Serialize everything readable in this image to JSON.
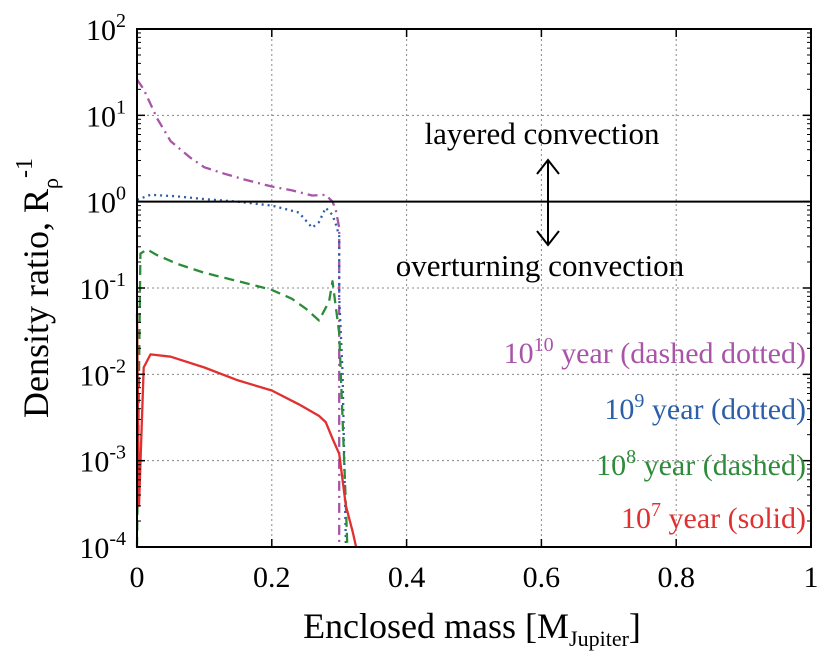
{
  "chart_data": {
    "type": "line",
    "xlabel": "Enclosed mass [M",
    "xlabel_sub": "Jupiter",
    "xlabel_close": "]",
    "ylabel": "Density ratio, R",
    "ylabel_sub": "ρ",
    "ylabel_sup": "-1",
    "xlim": [
      0,
      1
    ],
    "ylim": [
      0.0001,
      100
    ],
    "y_scale": "log",
    "grid": true,
    "x_ticks": [
      "0",
      "0.2",
      "0.4",
      "0.6",
      "0.8",
      "1"
    ],
    "x_tick_values": [
      0,
      0.2,
      0.4,
      0.6,
      0.8,
      1
    ],
    "y_ticks": [
      {
        "value": 100,
        "base": "10",
        "exp": "2"
      },
      {
        "value": 10,
        "base": "10",
        "exp": "1"
      },
      {
        "value": 1,
        "base": "10",
        "exp": "0"
      },
      {
        "value": 0.1,
        "base": "10",
        "exp": "-1"
      },
      {
        "value": 0.01,
        "base": "10",
        "exp": "-2"
      },
      {
        "value": 0.001,
        "base": "10",
        "exp": "-3"
      },
      {
        "value": 0.0001,
        "base": "10",
        "exp": "-4"
      }
    ],
    "reference_line": {
      "y": 1
    },
    "annotations": {
      "upper": "layered convection",
      "lower": "overturning convection"
    },
    "legend": {
      "placement": "right",
      "entries": [
        {
          "base": "10",
          "exp": "10",
          "text": " year (dashed dotted)",
          "color": "#a855a8"
        },
        {
          "base": "10",
          "exp": "9",
          "text": " year (dotted)",
          "color": "#2b5fa8"
        },
        {
          "base": "10",
          "exp": "8",
          "text": " year (dashed)",
          "color": "#2e8b3a"
        },
        {
          "base": "10",
          "exp": "7",
          "text": " year (solid)",
          "color": "#e03030"
        }
      ]
    },
    "series": [
      {
        "color": "#a855a8",
        "dash": "dashdot",
        "x": [
          0.0,
          0.01,
          0.03,
          0.05,
          0.08,
          0.1,
          0.13,
          0.16,
          0.2,
          0.23,
          0.26,
          0.28,
          0.29,
          0.295,
          0.3,
          0.3,
          0.3
        ],
        "y": [
          26,
          20,
          9.2,
          5.0,
          3.2,
          2.5,
          2.1,
          1.8,
          1.5,
          1.35,
          1.18,
          1.2,
          1.0,
          0.8,
          0.5,
          0.01,
          0.0001
        ]
      },
      {
        "color": "#2b5fa8",
        "dash": "dotted",
        "x": [
          0.0,
          0.02,
          0.06,
          0.1,
          0.15,
          0.2,
          0.24,
          0.26,
          0.27,
          0.28,
          0.29,
          0.295,
          0.3,
          0.3,
          0.305,
          0.31
        ],
        "y": [
          1.05,
          1.2,
          1.15,
          1.07,
          1.0,
          0.9,
          0.75,
          0.5,
          0.58,
          0.85,
          0.7,
          0.55,
          0.4,
          0.08,
          0.01,
          0.0001
        ]
      },
      {
        "color": "#2e8b3a",
        "dash": "dashed",
        "x": [
          0.0,
          0.005,
          0.015,
          0.03,
          0.06,
          0.1,
          0.15,
          0.2,
          0.23,
          0.25,
          0.27,
          0.285,
          0.29,
          0.3,
          0.305,
          0.31,
          0.312
        ],
        "y": [
          0.0001,
          0.25,
          0.28,
          0.24,
          0.19,
          0.15,
          0.12,
          0.095,
          0.075,
          0.058,
          0.042,
          0.07,
          0.12,
          0.03,
          0.003,
          0.0003,
          0.0001
        ]
      },
      {
        "color": "#e03030",
        "dash": "solid",
        "x": [
          0.0,
          0.003,
          0.01,
          0.02,
          0.05,
          0.1,
          0.15,
          0.2,
          0.24,
          0.27,
          0.28,
          0.29,
          0.3,
          0.31,
          0.32,
          0.325
        ],
        "y": [
          0.05,
          0.0003,
          0.012,
          0.017,
          0.016,
          0.012,
          0.0085,
          0.0065,
          0.0045,
          0.0033,
          0.0028,
          0.0018,
          0.0012,
          0.0003,
          0.00015,
          0.0001
        ]
      }
    ]
  }
}
